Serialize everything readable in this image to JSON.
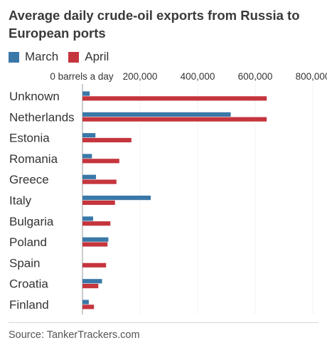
{
  "chart_data": {
    "type": "bar",
    "orientation": "horizontal",
    "title": "Average daily crude-oil exports from Russia to European ports",
    "categories": [
      "Unknown",
      "Netherlands",
      "Estonia",
      "Romania",
      "Greece",
      "Italy",
      "Bulgaria",
      "Poland",
      "Spain",
      "Croatia",
      "Finland"
    ],
    "series": [
      {
        "name": "March",
        "color": "#3a78a8",
        "values": [
          25000,
          515000,
          45000,
          33000,
          47000,
          237000,
          37000,
          90000,
          0,
          68000,
          22000
        ]
      },
      {
        "name": "April",
        "color": "#c5353d",
        "values": [
          640000,
          640000,
          170000,
          128000,
          118000,
          113000,
          97000,
          87000,
          82000,
          55000,
          40000
        ]
      }
    ],
    "xlim": [
      0,
      800000
    ],
    "x_ticks": [
      {
        "value": 0,
        "label": "0 barrels a day"
      },
      {
        "value": 200000,
        "label": "200,000"
      },
      {
        "value": 400000,
        "label": "400,000"
      },
      {
        "value": 600000,
        "label": "600,000"
      },
      {
        "value": 800000,
        "label": "800,000"
      }
    ],
    "grid": true,
    "legend_position": "top-left",
    "source": "Source: TankerTrackers.com"
  }
}
